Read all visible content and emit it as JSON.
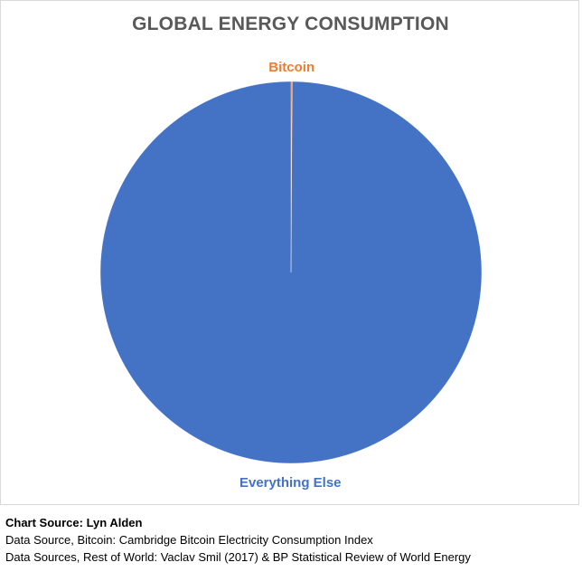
{
  "chart_data": {
    "type": "pie",
    "title": "GLOBAL ENERGY CONSUMPTION",
    "slices": [
      {
        "label": "Bitcoin",
        "value": 0.1,
        "color": "#ED7D31"
      },
      {
        "label": "Everything Else",
        "value": 99.9,
        "color": "#4472C4"
      }
    ]
  },
  "sources": [
    {
      "text": "Chart Source: Lyn Alden",
      "bold": true
    },
    {
      "text": "Data Source, Bitcoin: Cambridge Bitcoin Electricity Consumption Index",
      "bold": false
    },
    {
      "text": "Data Sources, Rest of World: Vaclav Smil (2017) & BP Statistical Review of World Energy",
      "bold": false
    }
  ]
}
